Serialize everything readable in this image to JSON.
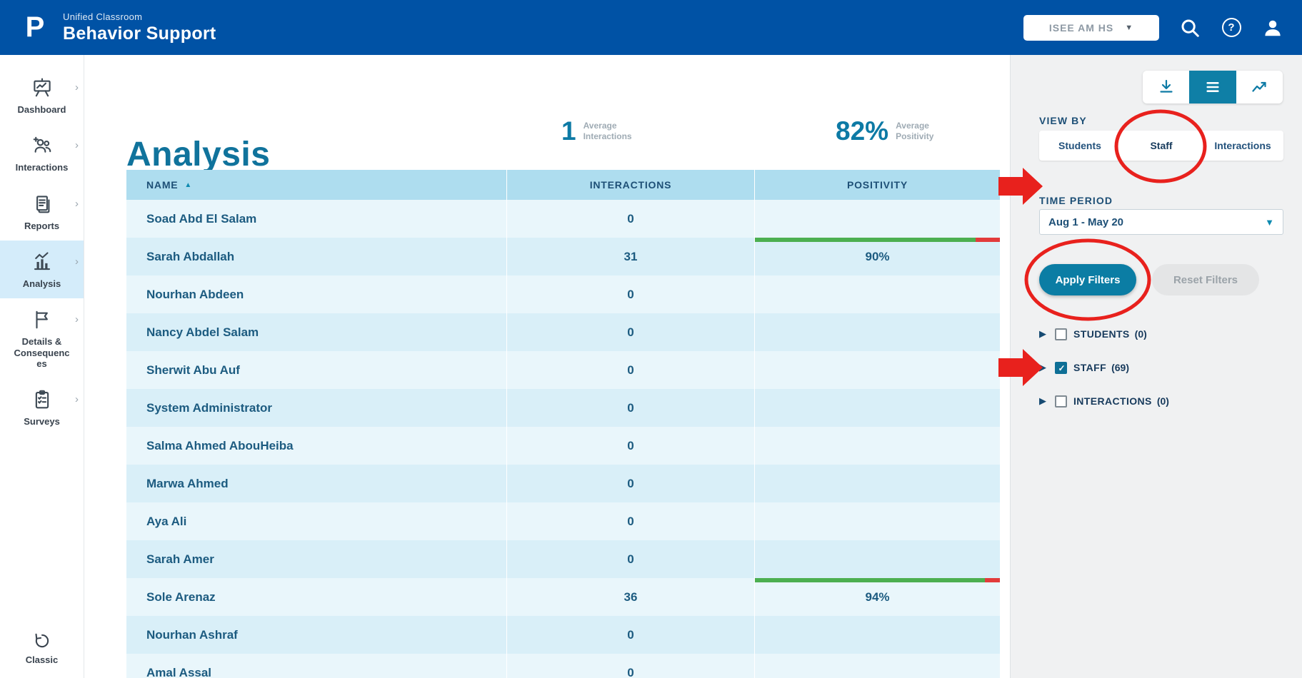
{
  "topbar": {
    "logo_glyph": "P",
    "brand_small": "Unified Classroom",
    "brand_large": "Behavior Support",
    "school_selector": "ISEE AM HS"
  },
  "sidebar": {
    "items": [
      {
        "label": "Dashboard",
        "active": false
      },
      {
        "label": "Interactions",
        "active": false
      },
      {
        "label": "Reports",
        "active": false
      },
      {
        "label": "Analysis",
        "active": true
      },
      {
        "label": "Details & Consequences",
        "active": false
      },
      {
        "label": "Surveys",
        "active": false
      }
    ],
    "classic_label": "Classic"
  },
  "main": {
    "title": "Analysis",
    "stats": [
      {
        "value": "1",
        "label_top": "Average",
        "label_bottom": "Interactions"
      },
      {
        "value": "82%",
        "label_top": "Average",
        "label_bottom": "Positivity"
      }
    ],
    "table": {
      "headers": [
        "NAME",
        "INTERACTIONS",
        "POSITIVITY"
      ],
      "sort_column": "NAME",
      "sort_direction": "asc",
      "rows": [
        {
          "name": "Soad Abd El Salam",
          "interactions": "0",
          "positivity": "",
          "positivity_value": null
        },
        {
          "name": "Sarah Abdallah",
          "interactions": "31",
          "positivity": "90%",
          "positivity_value": 90
        },
        {
          "name": "Nourhan Abdeen",
          "interactions": "0",
          "positivity": "",
          "positivity_value": null
        },
        {
          "name": "Nancy Abdel Salam",
          "interactions": "0",
          "positivity": "",
          "positivity_value": null
        },
        {
          "name": "Sherwit Abu Auf",
          "interactions": "0",
          "positivity": "",
          "positivity_value": null
        },
        {
          "name": "System Administrator",
          "interactions": "0",
          "positivity": "",
          "positivity_value": null
        },
        {
          "name": "Salma Ahmed AbouHeiba",
          "interactions": "0",
          "positivity": "",
          "positivity_value": null
        },
        {
          "name": "Marwa Ahmed",
          "interactions": "0",
          "positivity": "",
          "positivity_value": null
        },
        {
          "name": "Aya Ali",
          "interactions": "0",
          "positivity": "",
          "positivity_value": null
        },
        {
          "name": "Sarah Amer",
          "interactions": "0",
          "positivity": "",
          "positivity_value": null
        },
        {
          "name": "Sole Arenaz",
          "interactions": "36",
          "positivity": "94%",
          "positivity_value": 94
        },
        {
          "name": "Nourhan Ashraf",
          "interactions": "0",
          "positivity": "",
          "positivity_value": null
        },
        {
          "name": "Amal Assal",
          "interactions": "0",
          "positivity": "",
          "positivity_value": null
        }
      ]
    }
  },
  "filters": {
    "view_by_label": "VIEW BY",
    "view_tabs": [
      {
        "label": "Students",
        "active": false
      },
      {
        "label": "Staff",
        "active": true
      },
      {
        "label": "Interactions",
        "active": false
      }
    ],
    "time_period_label": "TIME PERIOD",
    "time_period_value": "Aug 1 - May 20",
    "apply_label": "Apply Filters",
    "reset_label": "Reset Filters",
    "groups": [
      {
        "label": "STUDENTS",
        "count": "(0)",
        "checked": false
      },
      {
        "label": "STAFF",
        "count": "(69)",
        "checked": true
      },
      {
        "label": "INTERACTIONS",
        "count": "(0)",
        "checked": false
      }
    ]
  },
  "icons": {
    "sort_asc": "▲",
    "expander": "▶",
    "chevron_down": "▼",
    "selector_chevron": "▼",
    "chevron_right": "›",
    "help_glyph": "?"
  },
  "colors": {
    "topbar_blue": "#0052a5",
    "accent_teal": "#0b7da4",
    "table_header": "#aeddef",
    "bar_green": "#4caf50",
    "bar_red": "#e23b3b",
    "annotation_red": "#e8211d"
  }
}
